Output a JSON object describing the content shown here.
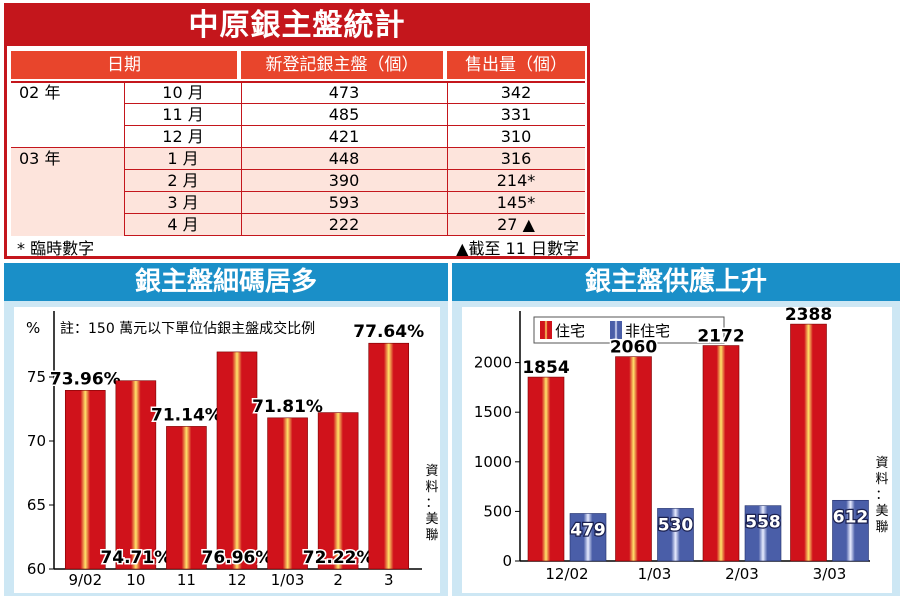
{
  "table": {
    "title": "中原銀主盤統計",
    "headers": [
      "日期",
      "新登記銀主盤（個）",
      "售出量（個）"
    ],
    "groups": [
      {
        "year": "02 年",
        "rows": [
          {
            "month": "10 月",
            "registered": "473",
            "sold": "342"
          },
          {
            "month": "11 月",
            "registered": "485",
            "sold": "331"
          },
          {
            "month": "12 月",
            "registered": "421",
            "sold": "310"
          }
        ]
      },
      {
        "year": "03 年",
        "rows": [
          {
            "month": "1 月",
            "registered": "448",
            "sold": "316"
          },
          {
            "month": "2 月",
            "registered": "390",
            "sold": "214*"
          },
          {
            "month": "3 月",
            "registered": "593",
            "sold": "145*"
          },
          {
            "month": "4 月",
            "registered": "222",
            "sold": "27 ▲"
          }
        ]
      }
    ],
    "footnote_left": "* 臨時數字",
    "footnote_right": "▲截至 11 日數字"
  },
  "chart_data": [
    {
      "type": "bar",
      "title": "銀主盤細碼居多",
      "ylabel": "%",
      "note": "註：150 萬元以下單位佔銀主盤成交比例",
      "source": "資料：美聯",
      "ylim": [
        60,
        80
      ],
      "yticks": [
        60,
        65,
        70,
        75
      ],
      "categories": [
        "9/02",
        "10",
        "11",
        "12",
        "1/03",
        "2",
        "3"
      ],
      "values": [
        73.96,
        74.71,
        71.14,
        76.96,
        71.81,
        72.22,
        77.64
      ],
      "labels": [
        "73.96%",
        "74.71%",
        "71.14%",
        "76.96%",
        "71.81%",
        "72.22%",
        "77.64%"
      ],
      "colors": {
        "bar": "#d0121b",
        "highlight": "#ffe36a"
      }
    },
    {
      "type": "bar",
      "title": "銀主盤供應上升",
      "source": "資料：美聯",
      "ylim": [
        0,
        2500
      ],
      "yticks": [
        0,
        500,
        1000,
        1500,
        2000
      ],
      "categories": [
        "12/02",
        "1/03",
        "2/03",
        "3/03"
      ],
      "series": [
        {
          "name": "住宅",
          "values": [
            1854,
            2060,
            2172,
            2388
          ],
          "color": "#d0121b"
        },
        {
          "name": "非住宅",
          "values": [
            479,
            530,
            558,
            612
          ],
          "color": "#4a5ea8"
        }
      ]
    }
  ]
}
